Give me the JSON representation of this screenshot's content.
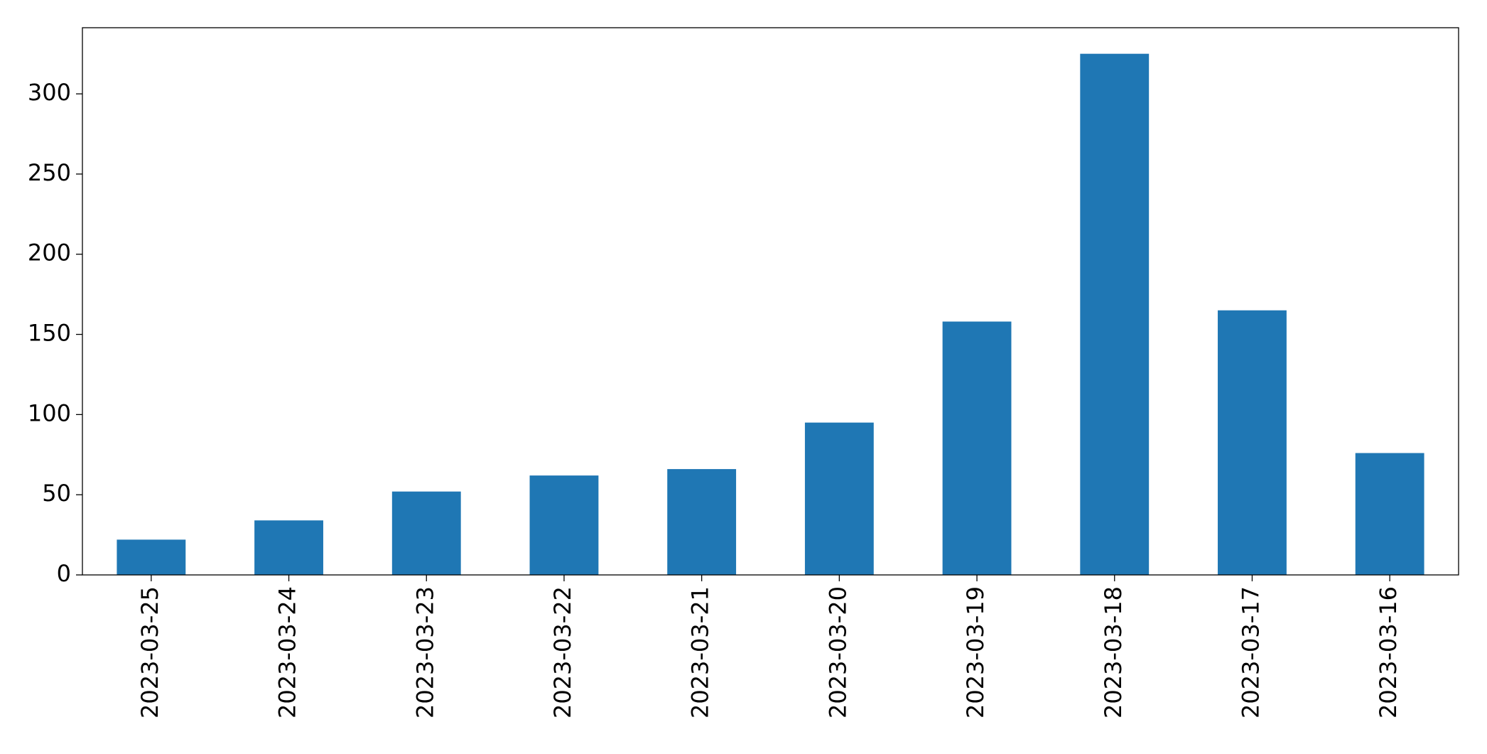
{
  "chart_data": {
    "type": "bar",
    "categories": [
      "2023-03-25",
      "2023-03-24",
      "2023-03-23",
      "2023-03-22",
      "2023-03-21",
      "2023-03-20",
      "2023-03-19",
      "2023-03-18",
      "2023-03-17",
      "2023-03-16"
    ],
    "values": [
      22,
      34,
      52,
      62,
      66,
      95,
      158,
      325,
      165,
      76
    ],
    "color": "#1f77b4",
    "ylim": [
      0,
      341.25
    ],
    "yticks": [
      0,
      50,
      100,
      150,
      200,
      250,
      300
    ],
    "grid": false
  }
}
